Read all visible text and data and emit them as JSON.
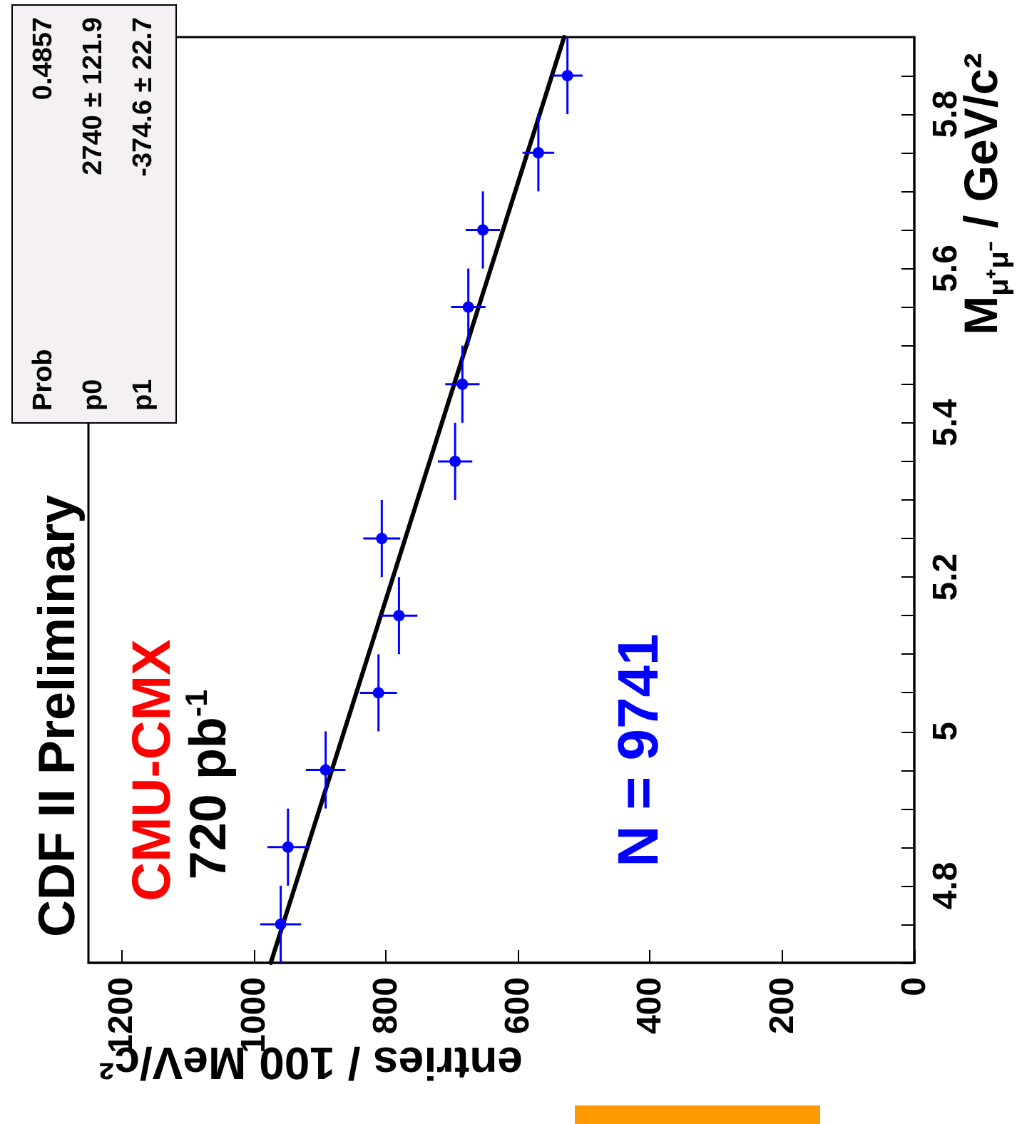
{
  "chart_data": {
    "type": "scatter",
    "xlabel": "entries / 100 MeV/c²",
    "ylabel": "M$_{μ⁺μ⁻}$ / GeV/c²",
    "xlim": [
      1250,
      0
    ],
    "xticks": [
      1200,
      1000,
      800,
      600,
      400,
      200,
      0
    ],
    "ylim": [
      4.7,
      5.9
    ],
    "yticks": [
      {
        "value": 4.7,
        "label": null
      },
      {
        "value": 4.75,
        "label": null
      },
      4.8,
      {
        "value": 4.85,
        "label": null
      },
      {
        "value": 4.9,
        "label": null
      },
      {
        "value": 4.95,
        "label": null
      },
      5,
      {
        "value": 5.05,
        "label": null
      },
      {
        "value": 5.1,
        "label": null
      },
      {
        "value": 5.15,
        "label": null
      },
      5.2,
      {
        "value": 5.25,
        "label": null
      },
      {
        "value": 5.3,
        "label": null
      },
      {
        "value": 5.35,
        "label": null
      },
      5.4,
      {
        "value": 5.45,
        "label": null
      },
      {
        "value": 5.5,
        "label": null
      },
      {
        "value": 5.55,
        "label": null
      },
      5.6,
      {
        "value": 5.65,
        "label": null
      },
      {
        "value": 5.7,
        "label": null
      },
      {
        "value": 5.75,
        "label": null
      },
      5.8,
      {
        "value": 5.85,
        "label": null
      }
    ],
    "series": [
      {
        "color": "#0000ff",
        "marker": "circle",
        "x": [
          959,
          948,
          891,
          811,
          780,
          806,
          695,
          684,
          675,
          653,
          569,
          525
        ],
        "values": [
          4.75,
          4.85,
          4.95,
          5.05,
          5.15,
          5.25,
          5.35,
          5.45,
          5.55,
          5.65,
          5.75,
          5.85
        ],
        "xerrors": [
          31,
          31,
          30,
          28,
          28,
          28,
          26,
          26,
          26,
          26,
          24,
          23
        ],
        "errors": [
          0.05,
          0.05,
          0.05,
          0.05,
          0.05,
          0.05,
          0.05,
          0.05,
          0.05,
          0.05,
          0.05,
          0.05
        ]
      },
      {
        "type": "line",
        "color": "#000000",
        "x": [
          974,
          530
        ],
        "values": [
          4.7,
          5.9
        ]
      }
    ],
    "annotations": [
      "CDF II Preliminary",
      "CMU-CMX",
      "720 pb$^{-1}$",
      "N = 9741",
      "Prob 0.4857",
      "p0 2740 ± 121.9",
      "p1 -374.6 ± 22.7"
    ],
    "grid": false
  }
}
